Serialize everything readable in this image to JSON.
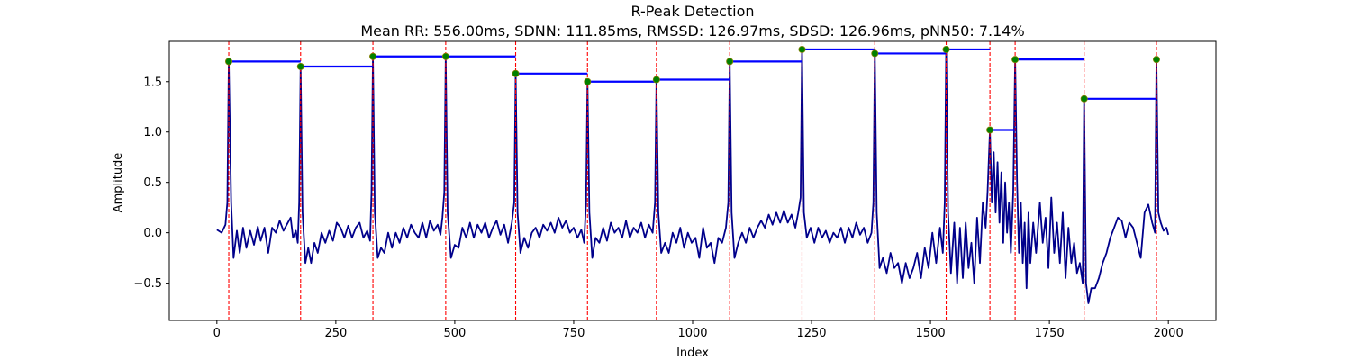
{
  "chart_data": {
    "type": "line",
    "title": "R-Peak Detection",
    "subtitle": "Mean RR: 556.00ms, SDNN: 111.85ms, RMSSD: 126.97ms, SDSD: 126.96ms, pNN50: 7.14%",
    "xlabel": "Index",
    "ylabel": "Amplitude",
    "xlim": [
      -100,
      2100
    ],
    "ylim": [
      -0.87,
      1.9
    ],
    "xticks": [
      0,
      250,
      500,
      750,
      1000,
      1250,
      1500,
      1750,
      2000
    ],
    "yticks": [
      -0.5,
      0.0,
      0.5,
      1.0,
      1.5
    ],
    "ytick_labels": [
      "−0.5",
      "0.0",
      "0.5",
      "1.0",
      "1.5"
    ],
    "grid": false,
    "colors": {
      "signal": "#00008b",
      "peak_line": "#ff0000",
      "peak_marker_fill": "#008000",
      "rr_segment": "#0000ff"
    },
    "signal_points": [
      [
        0,
        0.03
      ],
      [
        10,
        0.0
      ],
      [
        18,
        0.08
      ],
      [
        22,
        0.3
      ],
      [
        25,
        1.7
      ],
      [
        30,
        0.3
      ],
      [
        35,
        -0.25
      ],
      [
        42,
        0.02
      ],
      [
        48,
        -0.2
      ],
      [
        55,
        0.05
      ],
      [
        62,
        -0.15
      ],
      [
        70,
        0.02
      ],
      [
        78,
        -0.12
      ],
      [
        86,
        0.06
      ],
      [
        92,
        -0.08
      ],
      [
        100,
        0.05
      ],
      [
        108,
        -0.2
      ],
      [
        116,
        0.05
      ],
      [
        124,
        0.0
      ],
      [
        132,
        0.12
      ],
      [
        140,
        0.02
      ],
      [
        148,
        0.09
      ],
      [
        155,
        0.15
      ],
      [
        160,
        -0.05
      ],
      [
        166,
        0.02
      ],
      [
        170,
        -0.1
      ],
      [
        173,
        0.3
      ],
      [
        176,
        1.65
      ],
      [
        180,
        0.2
      ],
      [
        186,
        -0.3
      ],
      [
        192,
        -0.15
      ],
      [
        198,
        -0.3
      ],
      [
        205,
        -0.1
      ],
      [
        212,
        -0.2
      ],
      [
        220,
        0.0
      ],
      [
        228,
        -0.1
      ],
      [
        236,
        0.02
      ],
      [
        244,
        -0.08
      ],
      [
        252,
        0.1
      ],
      [
        260,
        0.05
      ],
      [
        268,
        -0.05
      ],
      [
        276,
        0.07
      ],
      [
        284,
        -0.05
      ],
      [
        292,
        0.05
      ],
      [
        300,
        0.1
      ],
      [
        308,
        -0.05
      ],
      [
        316,
        0.02
      ],
      [
        322,
        -0.08
      ],
      [
        325,
        0.4
      ],
      [
        328,
        1.75
      ],
      [
        332,
        0.2
      ],
      [
        338,
        -0.25
      ],
      [
        345,
        -0.15
      ],
      [
        352,
        -0.2
      ],
      [
        360,
        0.0
      ],
      [
        368,
        -0.15
      ],
      [
        376,
        0.0
      ],
      [
        384,
        -0.1
      ],
      [
        392,
        0.05
      ],
      [
        400,
        -0.05
      ],
      [
        408,
        0.08
      ],
      [
        416,
        0.0
      ],
      [
        424,
        -0.05
      ],
      [
        432,
        0.1
      ],
      [
        440,
        -0.05
      ],
      [
        448,
        0.12
      ],
      [
        456,
        0.02
      ],
      [
        464,
        0.08
      ],
      [
        470,
        -0.02
      ],
      [
        474,
        0.15
      ],
      [
        478,
        0.4
      ],
      [
        481,
        1.75
      ],
      [
        485,
        0.2
      ],
      [
        492,
        -0.25
      ],
      [
        500,
        -0.12
      ],
      [
        508,
        -0.15
      ],
      [
        516,
        0.05
      ],
      [
        524,
        -0.05
      ],
      [
        532,
        0.1
      ],
      [
        540,
        -0.05
      ],
      [
        548,
        0.08
      ],
      [
        556,
        0.0
      ],
      [
        564,
        0.1
      ],
      [
        572,
        -0.05
      ],
      [
        580,
        0.05
      ],
      [
        588,
        0.12
      ],
      [
        596,
        -0.02
      ],
      [
        604,
        0.08
      ],
      [
        612,
        -0.1
      ],
      [
        620,
        0.1
      ],
      [
        625,
        0.3
      ],
      [
        628,
        1.58
      ],
      [
        632,
        0.2
      ],
      [
        638,
        -0.2
      ],
      [
        646,
        -0.05
      ],
      [
        654,
        -0.15
      ],
      [
        662,
        0.0
      ],
      [
        670,
        0.05
      ],
      [
        678,
        -0.05
      ],
      [
        686,
        0.08
      ],
      [
        694,
        0.02
      ],
      [
        702,
        0.1
      ],
      [
        710,
        0.0
      ],
      [
        718,
        0.15
      ],
      [
        726,
        0.05
      ],
      [
        734,
        0.12
      ],
      [
        742,
        0.0
      ],
      [
        750,
        0.05
      ],
      [
        758,
        -0.05
      ],
      [
        766,
        0.03
      ],
      [
        772,
        -0.1
      ],
      [
        776,
        0.3
      ],
      [
        779,
        1.5
      ],
      [
        783,
        0.2
      ],
      [
        789,
        -0.25
      ],
      [
        796,
        -0.05
      ],
      [
        804,
        -0.1
      ],
      [
        812,
        0.05
      ],
      [
        820,
        -0.08
      ],
      [
        828,
        0.1
      ],
      [
        836,
        0.0
      ],
      [
        844,
        0.05
      ],
      [
        852,
        -0.05
      ],
      [
        860,
        0.12
      ],
      [
        868,
        -0.05
      ],
      [
        876,
        0.05
      ],
      [
        884,
        0.0
      ],
      [
        892,
        0.1
      ],
      [
        900,
        -0.05
      ],
      [
        908,
        0.08
      ],
      [
        916,
        0.0
      ],
      [
        921,
        0.3
      ],
      [
        924,
        1.52
      ],
      [
        928,
        0.2
      ],
      [
        934,
        -0.2
      ],
      [
        942,
        -0.1
      ],
      [
        950,
        -0.2
      ],
      [
        958,
        0.0
      ],
      [
        966,
        -0.1
      ],
      [
        974,
        0.05
      ],
      [
        982,
        -0.15
      ],
      [
        990,
        0.0
      ],
      [
        998,
        -0.1
      ],
      [
        1006,
        -0.05
      ],
      [
        1014,
        -0.25
      ],
      [
        1022,
        0.05
      ],
      [
        1030,
        -0.15
      ],
      [
        1038,
        -0.1
      ],
      [
        1046,
        -0.3
      ],
      [
        1054,
        -0.05
      ],
      [
        1062,
        -0.1
      ],
      [
        1070,
        0.05
      ],
      [
        1075,
        0.3
      ],
      [
        1078,
        1.7
      ],
      [
        1082,
        0.2
      ],
      [
        1088,
        -0.25
      ],
      [
        1096,
        -0.1
      ],
      [
        1104,
        0.0
      ],
      [
        1112,
        -0.1
      ],
      [
        1120,
        0.05
      ],
      [
        1128,
        -0.05
      ],
      [
        1136,
        0.05
      ],
      [
        1144,
        0.12
      ],
      [
        1152,
        0.05
      ],
      [
        1160,
        0.18
      ],
      [
        1168,
        0.08
      ],
      [
        1176,
        0.2
      ],
      [
        1184,
        0.1
      ],
      [
        1192,
        0.22
      ],
      [
        1200,
        0.1
      ],
      [
        1208,
        0.18
      ],
      [
        1216,
        0.05
      ],
      [
        1222,
        0.2
      ],
      [
        1227,
        0.35
      ],
      [
        1230,
        1.82
      ],
      [
        1234,
        0.2
      ],
      [
        1240,
        -0.05
      ],
      [
        1248,
        0.05
      ],
      [
        1256,
        -0.1
      ],
      [
        1264,
        0.05
      ],
      [
        1272,
        -0.05
      ],
      [
        1280,
        0.02
      ],
      [
        1288,
        -0.1
      ],
      [
        1296,
        0.0
      ],
      [
        1304,
        -0.05
      ],
      [
        1312,
        0.05
      ],
      [
        1320,
        -0.1
      ],
      [
        1328,
        0.05
      ],
      [
        1336,
        -0.05
      ],
      [
        1344,
        0.1
      ],
      [
        1352,
        -0.02
      ],
      [
        1360,
        0.05
      ],
      [
        1368,
        -0.1
      ],
      [
        1376,
        0.0
      ],
      [
        1380,
        0.3
      ],
      [
        1383,
        1.78
      ],
      [
        1387,
        0.2
      ],
      [
        1393,
        -0.35
      ],
      [
        1400,
        -0.25
      ],
      [
        1408,
        -0.4
      ],
      [
        1416,
        -0.2
      ],
      [
        1424,
        -0.35
      ],
      [
        1432,
        -0.3
      ],
      [
        1440,
        -0.5
      ],
      [
        1448,
        -0.3
      ],
      [
        1456,
        -0.45
      ],
      [
        1464,
        -0.35
      ],
      [
        1472,
        -0.2
      ],
      [
        1480,
        -0.45
      ],
      [
        1488,
        -0.15
      ],
      [
        1496,
        -0.35
      ],
      [
        1504,
        0.0
      ],
      [
        1512,
        -0.3
      ],
      [
        1520,
        0.05
      ],
      [
        1526,
        -0.2
      ],
      [
        1530,
        0.3
      ],
      [
        1533,
        1.82
      ],
      [
        1537,
        0.2
      ],
      [
        1543,
        -0.4
      ],
      [
        1550,
        0.1
      ],
      [
        1556,
        -0.5
      ],
      [
        1562,
        0.05
      ],
      [
        1568,
        -0.45
      ],
      [
        1574,
        0.1
      ],
      [
        1580,
        -0.35
      ],
      [
        1586,
        -0.1
      ],
      [
        1592,
        -0.5
      ],
      [
        1598,
        0.15
      ],
      [
        1604,
        -0.3
      ],
      [
        1610,
        0.3
      ],
      [
        1616,
        0.05
      ],
      [
        1620,
        0.4
      ],
      [
        1625,
        1.02
      ],
      [
        1629,
        0.3
      ],
      [
        1633,
        0.8
      ],
      [
        1637,
        0.2
      ],
      [
        1641,
        0.7
      ],
      [
        1645,
        0.1
      ],
      [
        1649,
        0.6
      ],
      [
        1653,
        -0.1
      ],
      [
        1657,
        0.5
      ],
      [
        1661,
        0.0
      ],
      [
        1665,
        0.3
      ],
      [
        1669,
        -0.2
      ],
      [
        1674,
        0.4
      ],
      [
        1678,
        1.72
      ],
      [
        1682,
        0.5
      ],
      [
        1686,
        -0.2
      ],
      [
        1690,
        0.3
      ],
      [
        1694,
        -0.3
      ],
      [
        1698,
        0.1
      ],
      [
        1702,
        -0.55
      ],
      [
        1706,
        0.2
      ],
      [
        1710,
        -0.3
      ],
      [
        1716,
        0.1
      ],
      [
        1722,
        -0.2
      ],
      [
        1730,
        0.3
      ],
      [
        1736,
        -0.1
      ],
      [
        1742,
        0.15
      ],
      [
        1748,
        -0.35
      ],
      [
        1754,
        0.35
      ],
      [
        1760,
        -0.2
      ],
      [
        1766,
        0.1
      ],
      [
        1772,
        -0.3
      ],
      [
        1778,
        0.2
      ],
      [
        1784,
        -0.45
      ],
      [
        1790,
        0.05
      ],
      [
        1796,
        -0.3
      ],
      [
        1802,
        -0.1
      ],
      [
        1808,
        -0.4
      ],
      [
        1814,
        -0.3
      ],
      [
        1820,
        -0.5
      ],
      [
        1823,
        1.33
      ],
      [
        1827,
        -0.5
      ],
      [
        1832,
        -0.7
      ],
      [
        1838,
        -0.55
      ],
      [
        1846,
        -0.55
      ],
      [
        1854,
        -0.45
      ],
      [
        1862,
        -0.3
      ],
      [
        1870,
        -0.2
      ],
      [
        1878,
        -0.05
      ],
      [
        1886,
        0.05
      ],
      [
        1894,
        0.15
      ],
      [
        1902,
        0.12
      ],
      [
        1910,
        -0.05
      ],
      [
        1918,
        0.1
      ],
      [
        1926,
        0.05
      ],
      [
        1934,
        -0.1
      ],
      [
        1942,
        -0.25
      ],
      [
        1950,
        0.2
      ],
      [
        1958,
        0.28
      ],
      [
        1966,
        0.1
      ],
      [
        1972,
        0.0
      ],
      [
        1975,
        1.72
      ],
      [
        1979,
        0.2
      ],
      [
        1984,
        0.1
      ],
      [
        1990,
        0.02
      ],
      [
        1996,
        0.05
      ],
      [
        2000,
        -0.02
      ]
    ],
    "r_peaks": [
      {
        "x": 25,
        "y": 1.7
      },
      {
        "x": 176,
        "y": 1.65
      },
      {
        "x": 328,
        "y": 1.75
      },
      {
        "x": 481,
        "y": 1.75
      },
      {
        "x": 628,
        "y": 1.58
      },
      {
        "x": 779,
        "y": 1.5
      },
      {
        "x": 924,
        "y": 1.52
      },
      {
        "x": 1078,
        "y": 1.7
      },
      {
        "x": 1230,
        "y": 1.82
      },
      {
        "x": 1383,
        "y": 1.78
      },
      {
        "x": 1533,
        "y": 1.82
      },
      {
        "x": 1625,
        "y": 1.02
      },
      {
        "x": 1678,
        "y": 1.72
      },
      {
        "x": 1823,
        "y": 1.33
      },
      {
        "x": 1975,
        "y": 1.72
      }
    ]
  }
}
